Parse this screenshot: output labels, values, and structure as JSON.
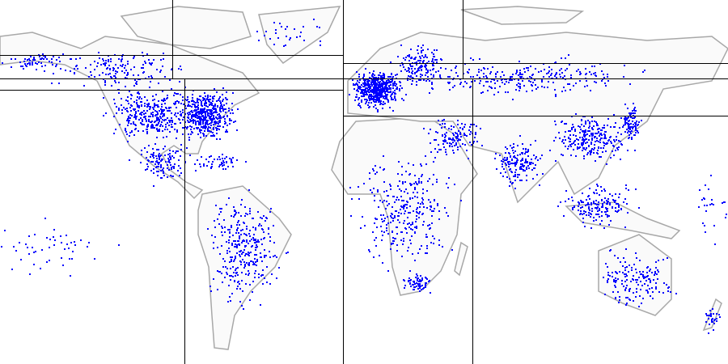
{
  "map": {
    "background_color": "#ffffff",
    "land_fill_color": "#fafafa",
    "coastline_color": "#a8a8a8",
    "point_color": "#0000ff",
    "grid_line_color": "#000000",
    "point_marker": "small-square",
    "panels": [
      "americas",
      "europe-africa-asia-oceania"
    ]
  }
}
